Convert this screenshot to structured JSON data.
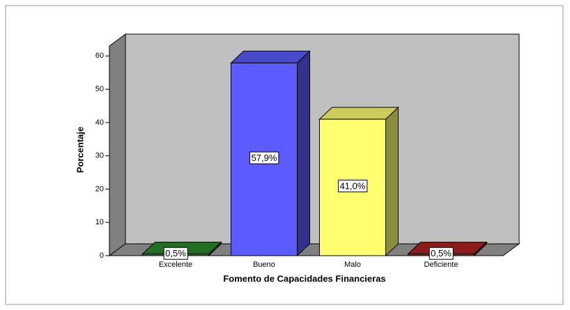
{
  "chart_data": {
    "type": "bar3d",
    "x_label": "Fomento de Capacidades Financieras",
    "y_label": "Porcentaje",
    "categories": [
      "Excelente",
      "Bueno",
      "Malo",
      "Deficiente"
    ],
    "values": [
      0.5,
      57.9,
      41.0,
      0.5
    ],
    "value_labels": [
      "0,5%",
      "57,9%",
      "41,0%",
      "0,5%"
    ],
    "colors": [
      "#2a8a2a",
      "#5b5bff",
      "#ffff70",
      "#b22222"
    ],
    "ylim": [
      0,
      63
    ],
    "yticks": [
      0,
      10,
      20,
      30,
      40,
      50,
      60
    ]
  }
}
